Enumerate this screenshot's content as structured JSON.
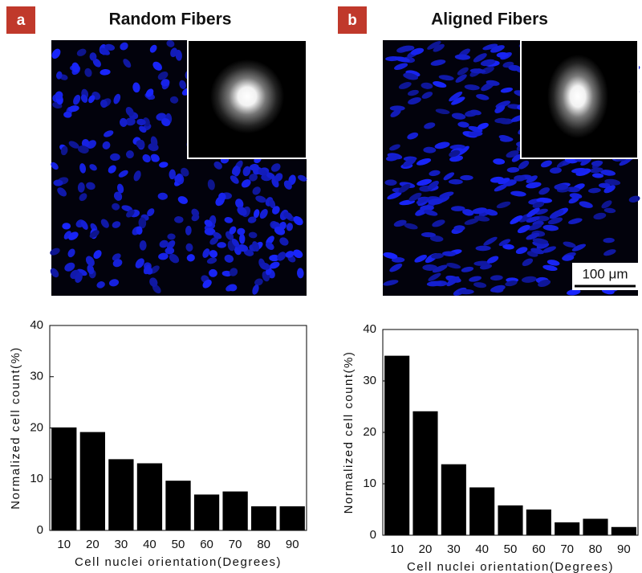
{
  "panels": [
    {
      "label": "a",
      "title": "Random Fibers"
    },
    {
      "label": "b",
      "title": "Aligned Fibers",
      "scale_bar": "100 μm"
    }
  ],
  "chart_data": [
    {
      "type": "bar",
      "categories": [
        "10",
        "20",
        "30",
        "40",
        "50",
        "60",
        "70",
        "80",
        "90"
      ],
      "values": [
        20.1,
        19.2,
        13.9,
        13.1,
        9.7,
        7.0,
        7.6,
        4.7,
        4.7
      ],
      "color": "#000000",
      "ylim": [
        0,
        40
      ],
      "yticks": [
        0,
        10,
        20,
        30,
        40
      ],
      "x_label": "Cell nuclei orientation(Degrees)",
      "y_label": "Normalized cell count(%)"
    },
    {
      "type": "bar",
      "categories": [
        "10",
        "20",
        "30",
        "40",
        "50",
        "60",
        "70",
        "80",
        "90"
      ],
      "values": [
        34.9,
        24.1,
        13.8,
        9.3,
        5.8,
        5.0,
        2.5,
        3.2,
        1.6
      ],
      "color": "#000000",
      "ylim": [
        0,
        40
      ],
      "yticks": [
        0,
        10,
        20,
        30,
        40
      ],
      "x_label": "Cell nuclei orientation(Degrees)",
      "y_label": "Normalized cell count(%)"
    }
  ]
}
